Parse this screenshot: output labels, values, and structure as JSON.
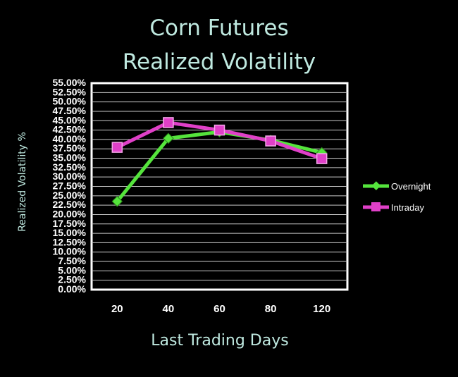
{
  "chart_data": {
    "type": "line",
    "title_lines": [
      "Corn Futures",
      "Realized Volatility"
    ],
    "xlabel": "Last Trading Days",
    "ylabel": "Realized Volatility %",
    "categories": [
      "20",
      "40",
      "60",
      "80",
      "120"
    ],
    "y_ticks": [
      "0.00%",
      "2.50%",
      "5.00%",
      "7.50%",
      "10.00%",
      "12.50%",
      "15.00%",
      "17.50%",
      "20.00%",
      "22.50%",
      "25.00%",
      "27.50%",
      "30.00%",
      "32.50%",
      "35.00%",
      "37.50%",
      "40.00%",
      "42.50%",
      "45.00%",
      "47.50%",
      "50.00%",
      "52.50%",
      "55.00%"
    ],
    "ylim": [
      0,
      55
    ],
    "grid": true,
    "legend_position": "right",
    "series": [
      {
        "name": "Overnight",
        "values": [
          23.5,
          40.3,
          42.0,
          39.8,
          36.5
        ],
        "color": "#55e43c",
        "marker": "diamond"
      },
      {
        "name": "Intraday",
        "values": [
          37.9,
          44.5,
          42.5,
          39.6,
          34.9
        ],
        "color": "#e040c8",
        "marker": "square"
      }
    ]
  }
}
